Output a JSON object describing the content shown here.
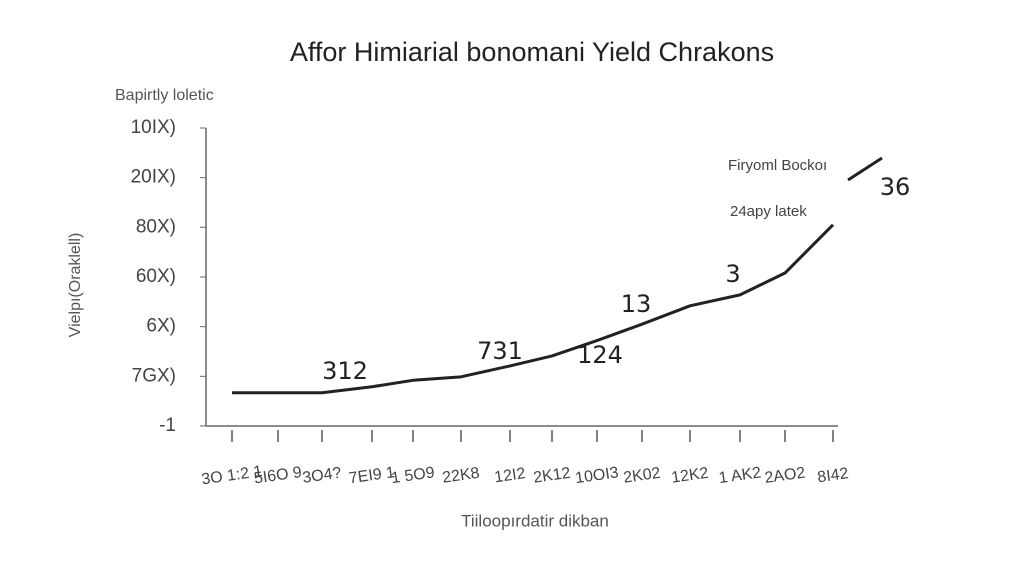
{
  "chart_data": {
    "type": "line",
    "title": "Affor Himiarial bonomani Yield Chrakons",
    "subtitle": "Bapirtly loletic",
    "y_label": "Vielpı(Oraklell)",
    "x_label": "Tiiloopırdatir dikban",
    "categories": [
      "3O 1:2 1",
      "5I6O 9",
      "3O4?",
      "7EI9 1",
      "1 5O9",
      "22K8",
      "12I2",
      "2K12",
      "10OI3",
      "2K02",
      "12K2",
      "1 AK2",
      "2AO2",
      "8I42"
    ],
    "series": [
      {
        "name": "Firyoml Bockoı",
        "color": "#222222",
        "values": [
          0.67,
          0.67,
          0.67,
          0.79,
          0.92,
          0.99,
          1.21,
          1.41,
          1.72,
          2.05,
          2.42,
          2.64,
          3.08,
          4.05
        ]
      }
    ],
    "legend_note": "24apy latek",
    "ylim": [
      0,
      6
    ],
    "yticks": [
      {
        "value": 0,
        "label": "-1"
      },
      {
        "value": 1,
        "label": "7GX)"
      },
      {
        "value": 2,
        "label": "6X)"
      },
      {
        "value": 3,
        "label": "60X)"
      },
      {
        "value": 4,
        "label": "80X)"
      },
      {
        "value": 5,
        "label": "20IX)"
      },
      {
        "value": 6,
        "label": "10IX)"
      }
    ],
    "annotations": [
      "312",
      "731",
      "124",
      "13",
      "3",
      "36"
    ],
    "grid": false
  }
}
